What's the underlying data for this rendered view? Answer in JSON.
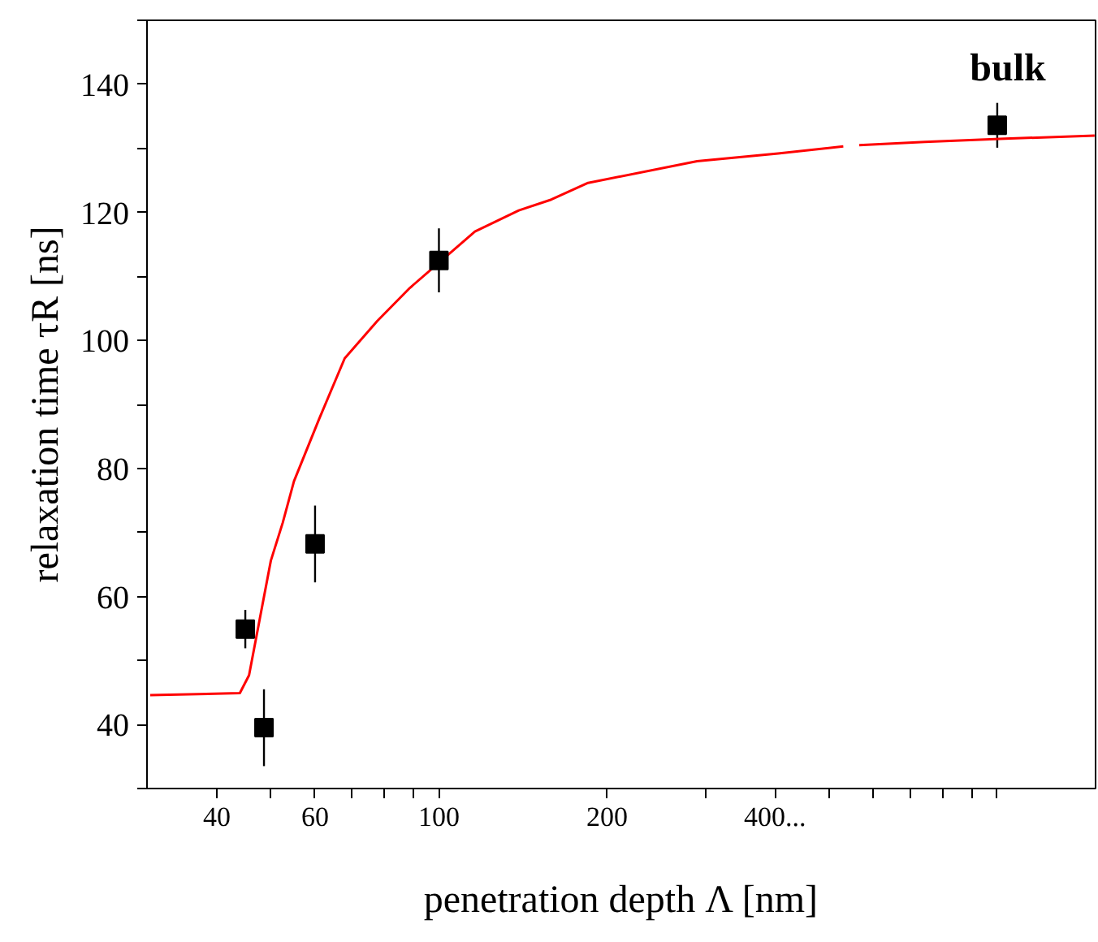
{
  "chart_data": {
    "type": "scatter",
    "xlabel": "penetration depth Λ [nm]",
    "ylabel": "relaxation time τR [ns]",
    "log": "x",
    "xlim": [
      30,
      1500
    ],
    "ylim": [
      30,
      150
    ],
    "xticks": [
      40,
      {
        "value": 50,
        "label": null
      },
      60,
      {
        "value": 70,
        "label": null
      },
      {
        "value": 80,
        "label": null
      },
      {
        "value": 90,
        "label": null
      },
      100,
      200,
      {
        "value": 300,
        "label": null
      },
      {
        "value": 400,
        "label": "400..."
      },
      {
        "value": 500,
        "label": null
      },
      {
        "value": 600,
        "label": null
      },
      {
        "value": 700,
        "label": null
      },
      {
        "value": 800,
        "label": null
      },
      {
        "value": 900,
        "label": null
      },
      {
        "value": 1000,
        "label": null
      }
    ],
    "yticks": [
      {
        "value": 30,
        "label": null
      },
      40,
      {
        "value": 50,
        "label": null
      },
      60,
      {
        "value": 70,
        "label": null
      },
      80,
      {
        "value": 90,
        "label": null
      },
      100,
      {
        "value": 110,
        "label": null
      },
      120,
      {
        "value": 130,
        "label": null
      },
      140,
      {
        "value": 150,
        "label": null
      }
    ],
    "grid": false,
    "series": [
      {
        "type": "line",
        "color": "#ff0000",
        "line_style": "solid",
        "marker": "none",
        "x": [
          30.4,
          44,
          45.7,
          50,
          52.5,
          55,
          61,
          67.8,
          77.5,
          88.7,
          99,
          116,
          139,
          159,
          185,
          290,
          405,
          530,
          550,
          566,
          742,
          1033,
          1494
        ],
        "values": [
          44.6,
          44.9,
          47.7,
          65.6,
          71.5,
          78,
          87.7,
          97.2,
          103,
          108.2,
          111.8,
          117,
          120.3,
          122,
          124.6,
          128,
          129.2,
          130.3,
          null,
          130.5,
          131,
          131.5,
          132
        ]
      },
      {
        "color": "#000000",
        "marker": "square",
        "x": [
          45,
          48.6,
          60,
          100,
          1000
        ],
        "values": [
          54.9,
          39.5,
          68.2,
          112.5,
          133.6
        ],
        "errors": [
          3,
          6,
          6,
          5,
          3.5
        ]
      }
    ],
    "annotations": [
      "bulk"
    ]
  }
}
